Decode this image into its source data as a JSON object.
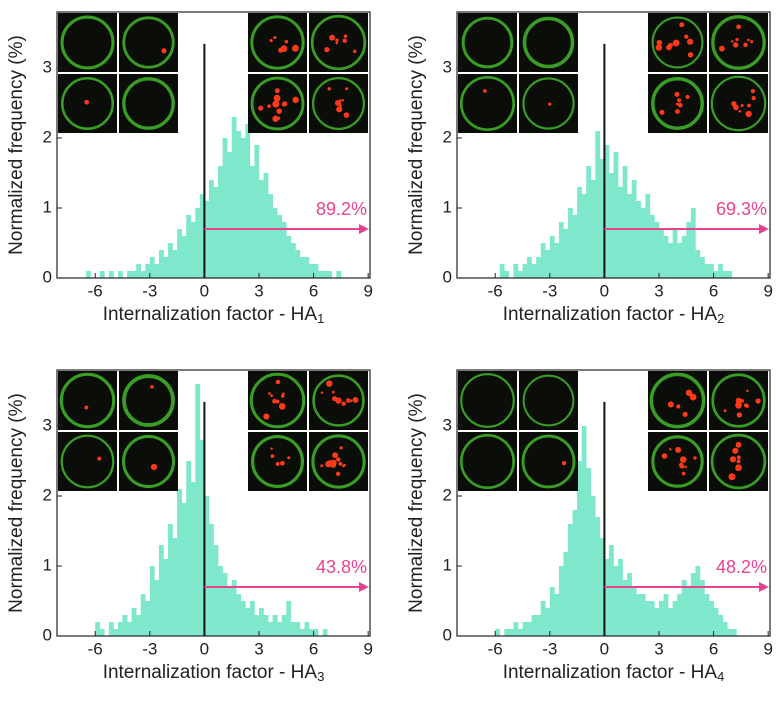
{
  "chart_data": [
    {
      "type": "histogram",
      "xlabel": "Internalization factor - HA",
      "xlabel_sub": "1",
      "ylabel": "Normalized frequency (%)",
      "color": "#7fe8cc",
      "bins": [
        -8,
        -7.75,
        -7.5,
        -7.25,
        -7,
        -6.75,
        -6.5,
        -6.25,
        -6,
        -5.75,
        -5.5,
        -5.25,
        -5,
        -4.75,
        -4.5,
        -4.25,
        -4,
        -3.75,
        -3.5,
        -3.25,
        -3,
        -2.75,
        -2.5,
        -2.25,
        -2,
        -1.75,
        -1.5,
        -1.25,
        -1,
        -0.75,
        -0.5,
        -0.25,
        0,
        0.25,
        0.5,
        0.75,
        1,
        1.25,
        1.5,
        1.75,
        2,
        2.25,
        2.5,
        2.75,
        3,
        3.25,
        3.5,
        3.75,
        4,
        4.25,
        4.5,
        4.75,
        5,
        5.25,
        5.5,
        5.75,
        6,
        6.25,
        6.5,
        6.75,
        7,
        7.25,
        7.5,
        7.75,
        8,
        8.25,
        8.5,
        8.75,
        9
      ],
      "values": [
        0,
        0,
        0,
        0,
        0,
        0,
        0.1,
        0,
        0,
        0.1,
        0,
        0.1,
        0,
        0.1,
        0,
        0.1,
        0.1,
        0.2,
        0.1,
        0.2,
        0.3,
        0.2,
        0.4,
        0.3,
        0.5,
        0.4,
        0.7,
        0.6,
        0.9,
        0.8,
        1.0,
        1.2,
        1.1,
        1.4,
        1.3,
        1.6,
        2.0,
        1.8,
        2.3,
        2.1,
        2.0,
        2.2,
        1.6,
        1.9,
        1.4,
        1.5,
        1.2,
        1.0,
        0.9,
        0.8,
        0.6,
        0.5,
        0.4,
        0.3,
        0.3,
        0.2,
        0.2,
        0.1,
        0.1,
        0.1,
        0,
        0.1,
        0,
        0,
        0,
        0,
        0,
        0
      ],
      "xlim": [
        -8.1,
        9.1
      ],
      "xticks": [
        -6,
        -3,
        0,
        3,
        6,
        9
      ],
      "ylim": [
        0,
        3.8
      ],
      "yticks": [
        0,
        1,
        2,
        3
      ],
      "threshold": 0,
      "arrow_y": 0.7,
      "annotation": "89.2%",
      "arrow_color": "#e8438f"
    },
    {
      "type": "histogram",
      "xlabel": "Internalization factor - HA",
      "xlabel_sub": "2",
      "ylabel": "Normalized frequency (%)",
      "color": "#7fe8cc",
      "bins": [
        -8,
        -7.75,
        -7.5,
        -7.25,
        -7,
        -6.75,
        -6.5,
        -6.25,
        -6,
        -5.75,
        -5.5,
        -5.25,
        -5,
        -4.75,
        -4.5,
        -4.25,
        -4,
        -3.75,
        -3.5,
        -3.25,
        -3,
        -2.75,
        -2.5,
        -2.25,
        -2,
        -1.75,
        -1.5,
        -1.25,
        -1,
        -0.75,
        -0.5,
        -0.25,
        0,
        0.25,
        0.5,
        0.75,
        1,
        1.25,
        1.5,
        1.75,
        2,
        2.25,
        2.5,
        2.75,
        3,
        3.25,
        3.5,
        3.75,
        4,
        4.25,
        4.5,
        4.75,
        5,
        5.25,
        5.5,
        5.75,
        6,
        6.25,
        6.5,
        6.75,
        7,
        7.25,
        7.5,
        7.75,
        8,
        8.25,
        8.5,
        8.75,
        9
      ],
      "values": [
        0,
        0,
        0,
        0,
        0,
        0,
        0,
        0,
        0,
        0.2,
        0.1,
        0,
        0.2,
        0.1,
        0.2,
        0.3,
        0.2,
        0.3,
        0.5,
        0.4,
        0.6,
        0.5,
        0.8,
        0.7,
        1.0,
        0.9,
        1.3,
        1.2,
        1.6,
        1.4,
        2.1,
        1.7,
        1.9,
        1.5,
        1.8,
        1.3,
        1.6,
        1.2,
        1.4,
        1.1,
        1.0,
        1.2,
        0.9,
        0.8,
        0.7,
        0.6,
        0.5,
        0.7,
        0.5,
        0.6,
        0.8,
        1.0,
        0.4,
        0.3,
        0.2,
        0.2,
        0.1,
        0.2,
        0.1,
        0.1,
        0,
        0,
        0,
        0,
        0,
        0,
        0,
        0
      ],
      "xlim": [
        -8.1,
        9.1
      ],
      "xticks": [
        -6,
        -3,
        0,
        3,
        6,
        9
      ],
      "ylim": [
        0,
        3.8
      ],
      "yticks": [
        0,
        1,
        2,
        3
      ],
      "threshold": 0,
      "arrow_y": 0.7,
      "annotation": "69.3%",
      "arrow_color": "#e8438f"
    },
    {
      "type": "histogram",
      "xlabel": "Internalization factor - HA",
      "xlabel_sub": "3",
      "ylabel": "Normalized frequency (%)",
      "color": "#7fe8cc",
      "bins": [
        -8,
        -7.75,
        -7.5,
        -7.25,
        -7,
        -6.75,
        -6.5,
        -6.25,
        -6,
        -5.75,
        -5.5,
        -5.25,
        -5,
        -4.75,
        -4.5,
        -4.25,
        -4,
        -3.75,
        -3.5,
        -3.25,
        -3,
        -2.75,
        -2.5,
        -2.25,
        -2,
        -1.75,
        -1.5,
        -1.25,
        -1,
        -0.75,
        -0.5,
        -0.25,
        0,
        0.25,
        0.5,
        0.75,
        1,
        1.25,
        1.5,
        1.75,
        2,
        2.25,
        2.5,
        2.75,
        3,
        3.25,
        3.5,
        3.75,
        4,
        4.25,
        4.5,
        4.75,
        5,
        5.25,
        5.5,
        5.75,
        6,
        6.25,
        6.5,
        6.75,
        7,
        7.25,
        7.5,
        7.75,
        8,
        8.25,
        8.5,
        8.75,
        9
      ],
      "values": [
        0,
        0,
        0,
        0,
        0,
        0,
        0,
        0,
        0.2,
        0.1,
        0,
        0.2,
        0.1,
        0.2,
        0.3,
        0.2,
        0.4,
        0.3,
        0.6,
        0.5,
        1.0,
        0.8,
        1.3,
        1.1,
        1.6,
        1.4,
        2.1,
        1.9,
        2.5,
        2.2,
        3.6,
        2.8,
        2.0,
        1.6,
        1.3,
        1.0,
        0.9,
        0.7,
        0.8,
        0.6,
        0.5,
        0.4,
        0.5,
        0.3,
        0.4,
        0.3,
        0.2,
        0.3,
        0.2,
        0.3,
        0.5,
        0.2,
        0.2,
        0.1,
        0.2,
        0.1,
        0.1,
        0,
        0.1,
        0,
        0,
        0,
        0,
        0,
        0,
        0,
        0,
        0
      ],
      "xlim": [
        -8.1,
        9.1
      ],
      "xticks": [
        -6,
        -3,
        0,
        3,
        6,
        9
      ],
      "ylim": [
        0,
        3.8
      ],
      "yticks": [
        0,
        1,
        2,
        3
      ],
      "threshold": 0,
      "arrow_y": 0.7,
      "annotation": "43.8%",
      "arrow_color": "#e8438f"
    },
    {
      "type": "histogram",
      "xlabel": "Internalization factor - HA",
      "xlabel_sub": "4",
      "ylabel": "Normalized frequency (%)",
      "color": "#7fe8cc",
      "bins": [
        -8,
        -7.75,
        -7.5,
        -7.25,
        -7,
        -6.75,
        -6.5,
        -6.25,
        -6,
        -5.75,
        -5.5,
        -5.25,
        -5,
        -4.75,
        -4.5,
        -4.25,
        -4,
        -3.75,
        -3.5,
        -3.25,
        -3,
        -2.75,
        -2.5,
        -2.25,
        -2,
        -1.75,
        -1.5,
        -1.25,
        -1,
        -0.75,
        -0.5,
        -0.25,
        0,
        0.25,
        0.5,
        0.75,
        1,
        1.25,
        1.5,
        1.75,
        2,
        2.25,
        2.5,
        2.75,
        3,
        3.25,
        3.5,
        3.75,
        4,
        4.25,
        4.5,
        4.75,
        5,
        5.25,
        5.5,
        5.75,
        6,
        6.25,
        6.5,
        6.75,
        7,
        7.25,
        7.5,
        7.75,
        8,
        8.25,
        8.5,
        8.75,
        9
      ],
      "values": [
        0,
        0,
        0,
        0,
        0,
        0,
        0,
        0,
        0.1,
        0,
        0.1,
        0.1,
        0.2,
        0.1,
        0.2,
        0.2,
        0.3,
        0.3,
        0.5,
        0.4,
        0.7,
        0.6,
        1.0,
        1.2,
        1.6,
        1.8,
        2.5,
        3.0,
        2.4,
        2.0,
        1.7,
        1.4,
        1.1,
        1.3,
        1.0,
        1.1,
        0.8,
        0.9,
        0.7,
        0.6,
        0.6,
        0.5,
        0.5,
        0.4,
        0.5,
        0.6,
        0.4,
        0.5,
        0.6,
        0.8,
        0.7,
        0.9,
        1.0,
        0.8,
        0.6,
        0.5,
        0.4,
        0.3,
        0.2,
        0.1,
        0.1,
        0,
        0,
        0,
        0,
        0,
        0,
        0
      ],
      "xlim": [
        -8.1,
        9.1
      ],
      "xticks": [
        -6,
        -3,
        0,
        3,
        6,
        9
      ],
      "ylim": [
        0,
        3.8
      ],
      "yticks": [
        0,
        1,
        2,
        3
      ],
      "threshold": 0,
      "arrow_y": 0.7,
      "annotation": "48.2%",
      "arrow_color": "#e8438f"
    }
  ]
}
